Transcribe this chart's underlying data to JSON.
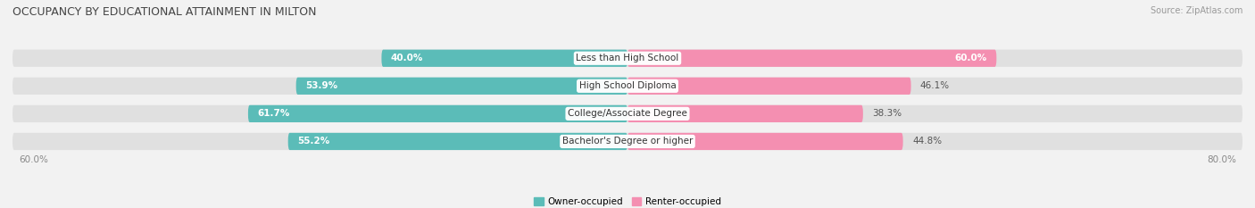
{
  "title": "OCCUPANCY BY EDUCATIONAL ATTAINMENT IN MILTON",
  "source": "Source: ZipAtlas.com",
  "categories": [
    "Less than High School",
    "High School Diploma",
    "College/Associate Degree",
    "Bachelor's Degree or higher"
  ],
  "owner_pct": [
    40.0,
    53.9,
    61.7,
    55.2
  ],
  "renter_pct": [
    60.0,
    46.1,
    38.3,
    44.8
  ],
  "owner_color": "#5bbcb8",
  "renter_color": "#f48fb1",
  "bar_height": 0.62,
  "background_color": "#f2f2f2",
  "bar_bg_color": "#e0e0e0",
  "title_fontsize": 9.0,
  "label_fontsize": 7.5,
  "pct_fontsize": 7.5,
  "legend_fontsize": 7.5,
  "source_fontsize": 7.0,
  "owner_label_white_threshold": 10.0,
  "renter_label_inside_threshold": 50.0
}
